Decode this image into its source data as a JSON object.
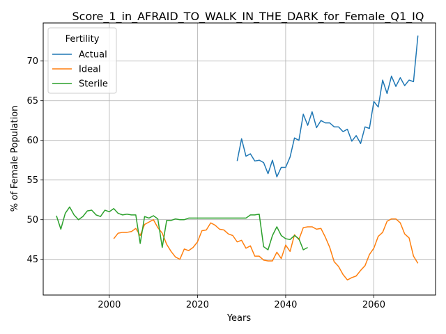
{
  "chart_data": {
    "type": "line",
    "title": "Score_1_in_AFRAID_TO_WALK_IN_THE_DARK_for_Female_Q1_IQ",
    "xlabel": "Years",
    "ylabel": "% of Female Population",
    "xlim": [
      1985,
      2074
    ],
    "ylim": [
      40.5,
      74.8
    ],
    "xticks": [
      2000,
      2020,
      2040,
      2060
    ],
    "yticks": [
      45,
      50,
      55,
      60,
      65,
      70
    ],
    "grid": true,
    "legend": {
      "title": "Fertility",
      "placement": "upper-left"
    },
    "series": [
      {
        "name": "Actual",
        "color": "#1f77b4",
        "x": [
          2029,
          2030,
          2031,
          2032,
          2033,
          2034,
          2035,
          2036,
          2037,
          2038,
          2039,
          2040,
          2041,
          2042,
          2043,
          2044,
          2045,
          2046,
          2047,
          2048,
          2049,
          2050,
          2051,
          2052,
          2053,
          2054,
          2055,
          2056,
          2057,
          2058,
          2059,
          2060,
          2061,
          2062,
          2063,
          2064,
          2065,
          2066,
          2067,
          2068,
          2069,
          2070
        ],
        "y": [
          57.4,
          60.2,
          58.0,
          58.3,
          57.4,
          57.5,
          57.2,
          55.8,
          57.5,
          55.4,
          56.6,
          56.6,
          57.9,
          60.3,
          60.0,
          63.3,
          61.9,
          63.6,
          61.6,
          62.5,
          62.2,
          62.2,
          61.7,
          61.7,
          61.1,
          61.4,
          59.9,
          60.6,
          59.6,
          61.7,
          61.5,
          64.9,
          64.2,
          67.6,
          65.9,
          68.1,
          66.8,
          67.9,
          66.9,
          67.6,
          67.4,
          73.2
        ]
      },
      {
        "name": "Ideal",
        "color": "#ff7f0e",
        "x": [
          2001,
          2002,
          2003,
          2004,
          2005,
          2006,
          2007,
          2008,
          2009,
          2010,
          2011,
          2012,
          2013,
          2014,
          2015,
          2016,
          2017,
          2018,
          2019,
          2020,
          2021,
          2022,
          2023,
          2024,
          2025,
          2026,
          2027,
          2028,
          2029,
          2030,
          2031,
          2032,
          2033,
          2034,
          2035,
          2036,
          2037,
          2038,
          2039,
          2040,
          2041,
          2042,
          2043,
          2044,
          2045,
          2046,
          2047,
          2048,
          2049,
          2050,
          2051,
          2052,
          2053,
          2054,
          2055,
          2056,
          2057,
          2058,
          2059,
          2060,
          2061,
          2062,
          2063,
          2064,
          2065,
          2066,
          2067,
          2068,
          2069,
          2070
        ],
        "y": [
          47.6,
          48.3,
          48.4,
          48.4,
          48.5,
          48.9,
          48.0,
          49.4,
          49.7,
          50.0,
          49.0,
          48.3,
          46.9,
          46.0,
          45.3,
          45.0,
          46.3,
          46.1,
          46.5,
          47.2,
          48.6,
          48.7,
          49.6,
          49.3,
          48.8,
          48.7,
          48.2,
          48.0,
          47.2,
          47.4,
          46.4,
          46.7,
          45.4,
          45.4,
          44.9,
          44.8,
          44.8,
          45.9,
          45.1,
          46.8,
          46.0,
          48.1,
          47.5,
          49.0,
          49.1,
          49.1,
          48.8,
          48.9,
          47.8,
          46.5,
          44.7,
          44.1,
          43.1,
          42.4,
          42.7,
          42.9,
          43.6,
          44.2,
          45.6,
          46.4,
          47.9,
          48.4,
          49.8,
          50.1,
          50.1,
          49.6,
          48.2,
          47.7,
          45.4,
          44.5
        ]
      },
      {
        "name": "Sterile",
        "color": "#2ca02c",
        "x": [
          1988,
          1989,
          1990,
          1991,
          1992,
          1993,
          1994,
          1995,
          1996,
          1997,
          1998,
          1999,
          2000,
          2001,
          2002,
          2003,
          2004,
          2005,
          2006,
          2007,
          2008,
          2009,
          2010,
          2011,
          2012,
          2013,
          2014,
          2015,
          2016,
          2017,
          2018,
          2019,
          2020,
          2021,
          2022,
          2023,
          2024,
          2025,
          2026,
          2027,
          2028,
          2029,
          2030,
          2031,
          2032,
          2033,
          2034,
          2035,
          2036,
          2037,
          2038,
          2039,
          2040,
          2041,
          2042,
          2043,
          2044,
          2045
        ],
        "y": [
          50.5,
          48.8,
          50.8,
          51.6,
          50.6,
          50.0,
          50.4,
          51.1,
          51.2,
          50.6,
          50.4,
          51.2,
          51.0,
          51.4,
          50.8,
          50.6,
          50.7,
          50.6,
          50.6,
          47.0,
          50.4,
          50.2,
          50.5,
          50.1,
          46.5,
          49.9,
          49.9,
          50.1,
          50.0,
          50.0,
          50.2,
          50.2,
          50.2,
          50.2,
          50.2,
          50.2,
          50.2,
          50.2,
          50.2,
          50.2,
          50.2,
          50.2,
          50.2,
          50.2,
          50.6,
          50.6,
          50.7,
          46.6,
          46.2,
          48.0,
          49.1,
          48.0,
          47.6,
          47.5,
          48.0,
          47.6,
          46.2,
          46.5
        ]
      }
    ]
  }
}
